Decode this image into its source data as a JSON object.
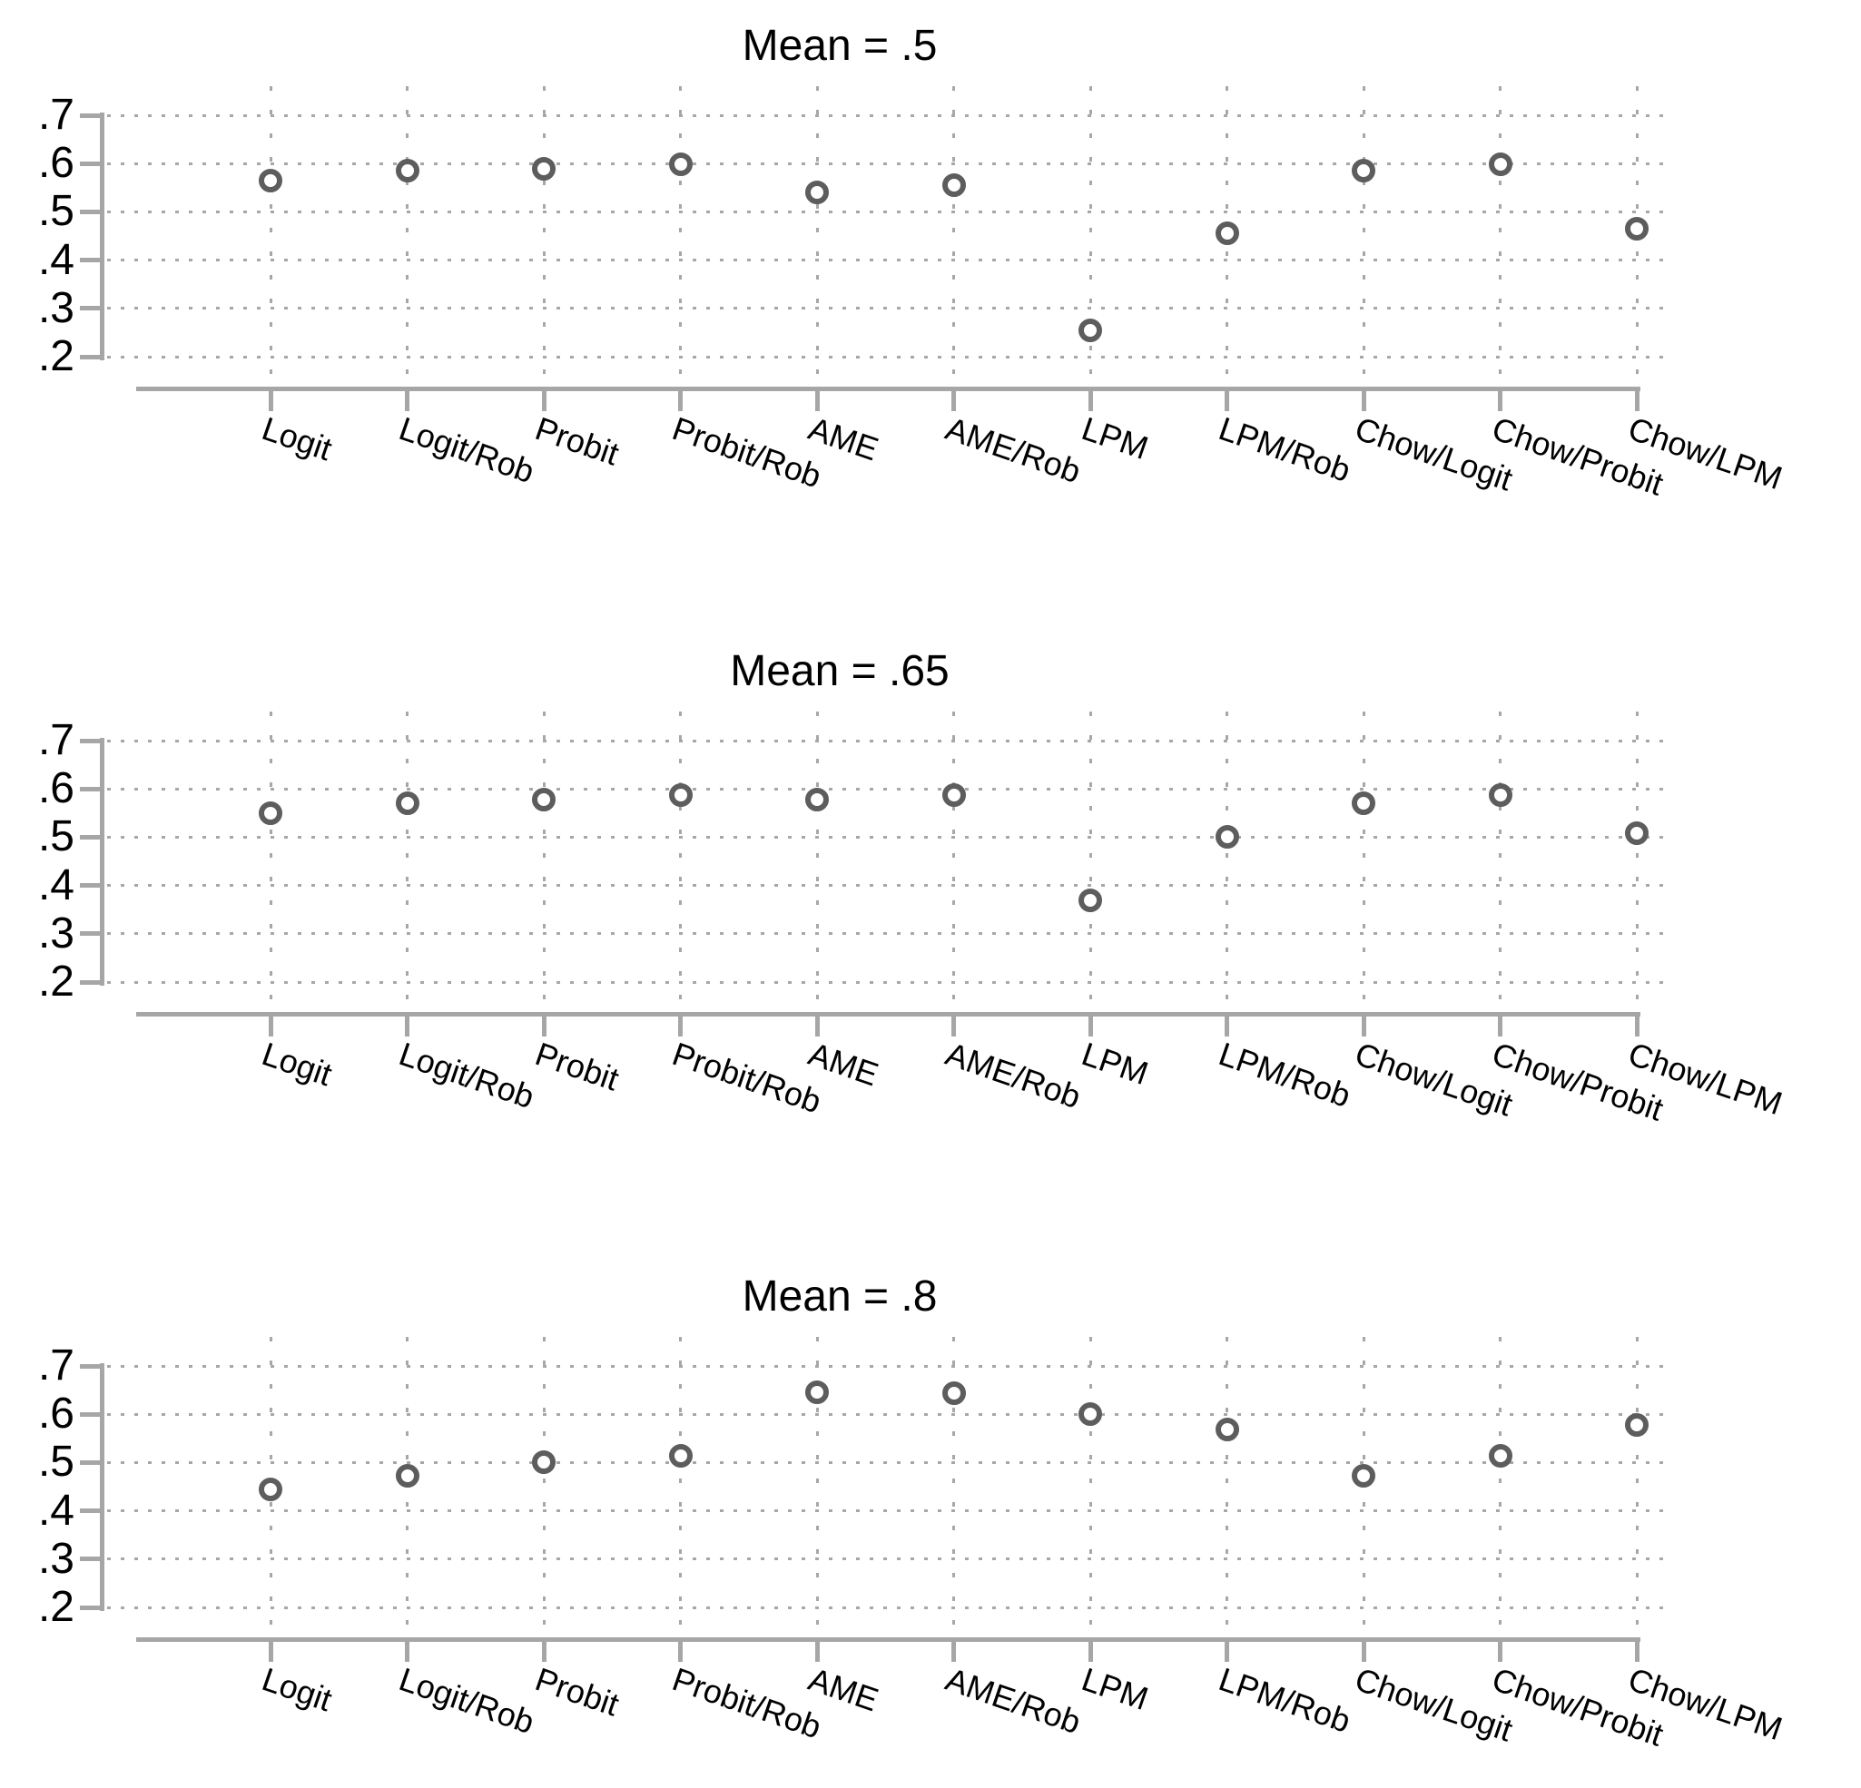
{
  "figure_title": "",
  "styles": {
    "marker_color": "#5d5d5d",
    "axis_color": "#a6a6a6",
    "grid_color": "#a7a7a7",
    "text_color": "#000000",
    "background": "#ffffff"
  },
  "chart_data": [
    {
      "type": "scatter",
      "title": "Mean = .5",
      "marker": "hollow-circle",
      "categories": [
        "Logit",
        "Logit/Rob",
        "Probit",
        "Probit/Rob",
        "AME",
        "AME/Rob",
        "LPM",
        "LPM/Rob",
        "Chow/Logit",
        "Chow/Probit",
        "Chow/LPM"
      ],
      "values": [
        0.565,
        0.585,
        0.59,
        0.598,
        0.54,
        0.555,
        0.255,
        0.455,
        0.585,
        0.598,
        0.465
      ],
      "ylim": [
        0.2,
        0.7
      ],
      "yticks": [
        0.7,
        0.6,
        0.5,
        0.4,
        0.3,
        0.2
      ],
      "ytick_labels": [
        ".7",
        ".6",
        ".5",
        ".4",
        ".3",
        ".2"
      ],
      "grid": "dotted-both",
      "legend": false,
      "xlabel": "",
      "ylabel": ""
    },
    {
      "type": "scatter",
      "title": "Mean = .65",
      "marker": "hollow-circle",
      "categories": [
        "Logit",
        "Logit/Rob",
        "Probit",
        "Probit/Rob",
        "AME",
        "AME/Rob",
        "LPM",
        "LPM/Rob",
        "Chow/Logit",
        "Chow/Probit",
        "Chow/LPM"
      ],
      "values": [
        0.55,
        0.57,
        0.578,
        0.587,
        0.577,
        0.587,
        0.37,
        0.5,
        0.57,
        0.587,
        0.508
      ],
      "ylim": [
        0.2,
        0.7
      ],
      "yticks": [
        0.7,
        0.6,
        0.5,
        0.4,
        0.3,
        0.2
      ],
      "ytick_labels": [
        ".7",
        ".6",
        ".5",
        ".4",
        ".3",
        ".2"
      ],
      "grid": "dotted-both",
      "legend": false,
      "xlabel": "",
      "ylabel": ""
    },
    {
      "type": "scatter",
      "title": "Mean = .8",
      "marker": "hollow-circle",
      "categories": [
        "Logit",
        "Logit/Rob",
        "Probit",
        "Probit/Rob",
        "AME",
        "AME/Rob",
        "LPM",
        "LPM/Rob",
        "Chow/Logit",
        "Chow/Probit",
        "Chow/LPM"
      ],
      "values": [
        0.445,
        0.472,
        0.5,
        0.514,
        0.645,
        0.643,
        0.6,
        0.568,
        0.472,
        0.514,
        0.577
      ],
      "ylim": [
        0.2,
        0.7
      ],
      "yticks": [
        0.7,
        0.6,
        0.5,
        0.4,
        0.3,
        0.2
      ],
      "ytick_labels": [
        ".7",
        ".6",
        ".5",
        ".4",
        ".3",
        ".2"
      ],
      "grid": "dotted-both",
      "legend": false,
      "xlabel": "",
      "ylabel": ""
    }
  ]
}
